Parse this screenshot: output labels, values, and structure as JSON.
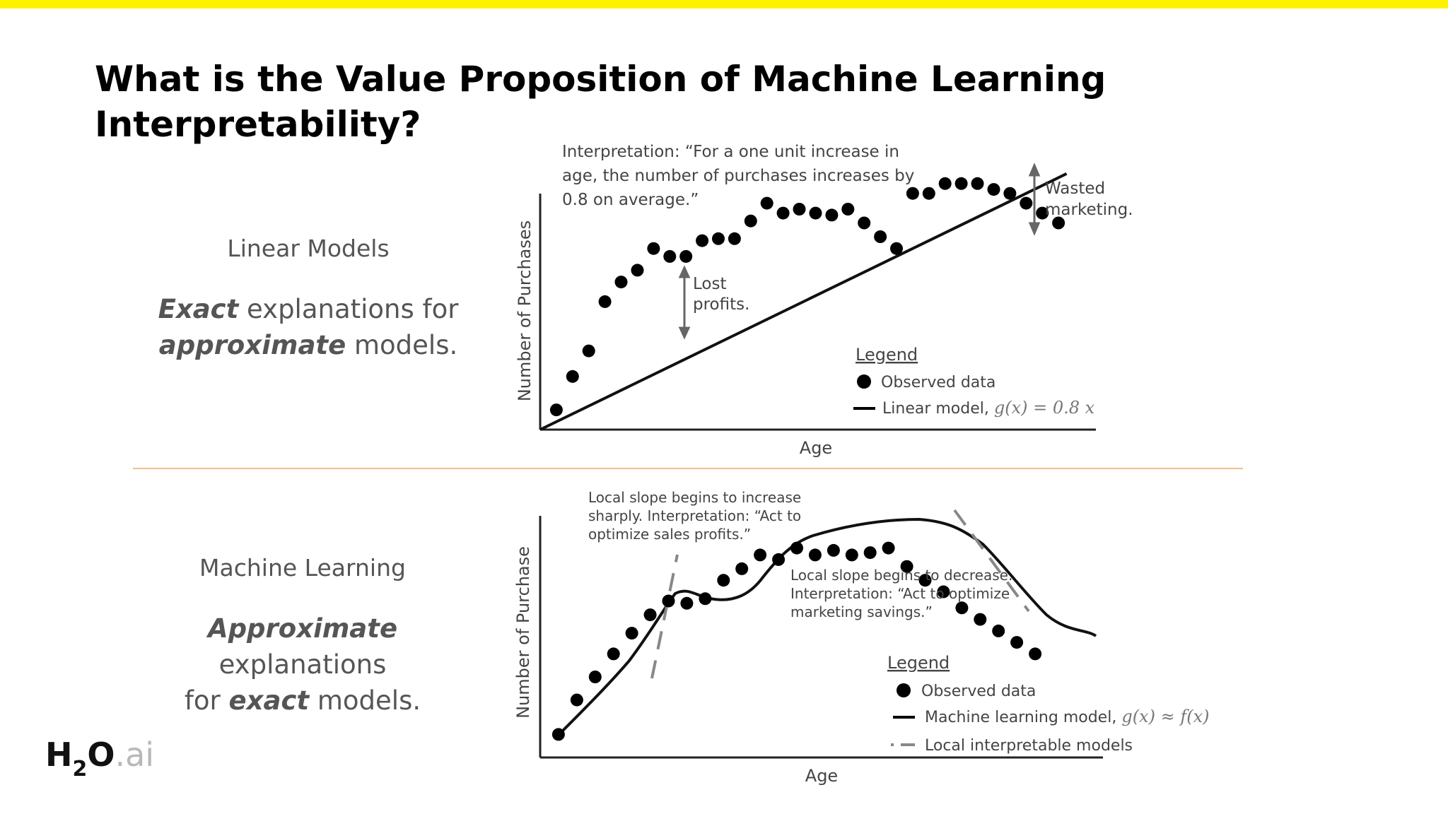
{
  "slide": {
    "title": "What is the Value Proposition of Machine Learning Interpretability?",
    "accent_color": "#fff200",
    "divider_color": "#f2c08e"
  },
  "linear_section": {
    "heading": "Linear Models",
    "desc_line1_emph": "Exact",
    "desc_line1_rest": " explanations for",
    "desc_line2_emph": "approximate",
    "desc_line2_rest": " models."
  },
  "ml_section": {
    "heading": "Machine Learning",
    "desc_line1_emph": "Approximate",
    "desc_line1_rest": " explanations",
    "desc_line2_pre": "for ",
    "desc_line2_emph": "exact",
    "desc_line2_rest": " models."
  },
  "logo": {
    "h": "H",
    "sub": "2",
    "o": "O",
    "ai": ".ai"
  },
  "chart_data": [
    {
      "type": "scatter",
      "name": "linear",
      "xlabel": "Age",
      "ylabel": "Number of Purchases",
      "x": [
        1,
        2,
        3,
        4,
        5,
        6,
        7,
        8,
        9,
        10,
        11,
        12,
        13,
        14,
        15,
        16,
        17,
        18,
        19,
        20,
        21,
        22,
        23,
        24,
        25,
        26,
        27,
        28,
        29,
        30,
        31,
        32
      ],
      "y": [
        1.0,
        2.7,
        4.0,
        6.5,
        7.5,
        8.1,
        9.2,
        8.8,
        8.8,
        9.6,
        9.7,
        9.7,
        10.6,
        11.5,
        11.0,
        11.2,
        11.0,
        10.9,
        11.2,
        10.5,
        9.8,
        9.2,
        12.0,
        12.0,
        12.5,
        12.5,
        12.5,
        12.2,
        12.0,
        11.5,
        11.0,
        10.5
      ],
      "line": {
        "slope": 0.8,
        "intercept": 0
      },
      "annotations": {
        "interpretation_line1": "Interpretation: “For a one unit increase in",
        "interpretation_line2": "age, the number of purchases increases by",
        "interpretation_line3": "0.8 on average.”",
        "lost_line1": "Lost",
        "lost_line2": "profits.",
        "wasted_line1": "Wasted",
        "wasted_line2": "marketing."
      },
      "legend": {
        "title": "Legend",
        "observed": "Observed data",
        "model_label": "Linear model, ",
        "model_math": "g(x) = 0.8 x"
      }
    },
    {
      "type": "scatter",
      "name": "machine-learning",
      "xlabel": "Age",
      "ylabel": "Number of Purchase",
      "x": [
        1,
        2,
        3,
        4,
        5,
        6,
        7,
        8,
        9,
        10,
        11,
        12,
        13,
        14,
        15,
        16,
        17,
        18,
        19,
        20,
        21,
        22,
        23,
        24,
        25,
        26,
        27
      ],
      "y": [
        1.0,
        2.5,
        3.5,
        4.5,
        5.4,
        6.2,
        6.8,
        6.7,
        6.9,
        7.7,
        8.2,
        8.8,
        8.6,
        9.1,
        8.8,
        9.0,
        8.8,
        8.9,
        9.1,
        8.3,
        7.7,
        7.2,
        6.5,
        6.0,
        5.5,
        5.0,
        4.5
      ],
      "annotations": {
        "increase_line1": "Local slope begins to increase",
        "increase_line2": "sharply. Interpretation: “Act to",
        "increase_line3": "optimize sales profits.”",
        "decrease_line1": "Local slope begins to decrease.",
        "decrease_line2": "Interpretation: “Act to optimize",
        "decrease_line3": "marketing savings.”"
      },
      "legend": {
        "title": "Legend",
        "observed": "Observed data",
        "model_label": "Machine learning model, ",
        "model_math": "g(x) ≈ f(x)",
        "local": "Local interpretable models"
      }
    }
  ]
}
